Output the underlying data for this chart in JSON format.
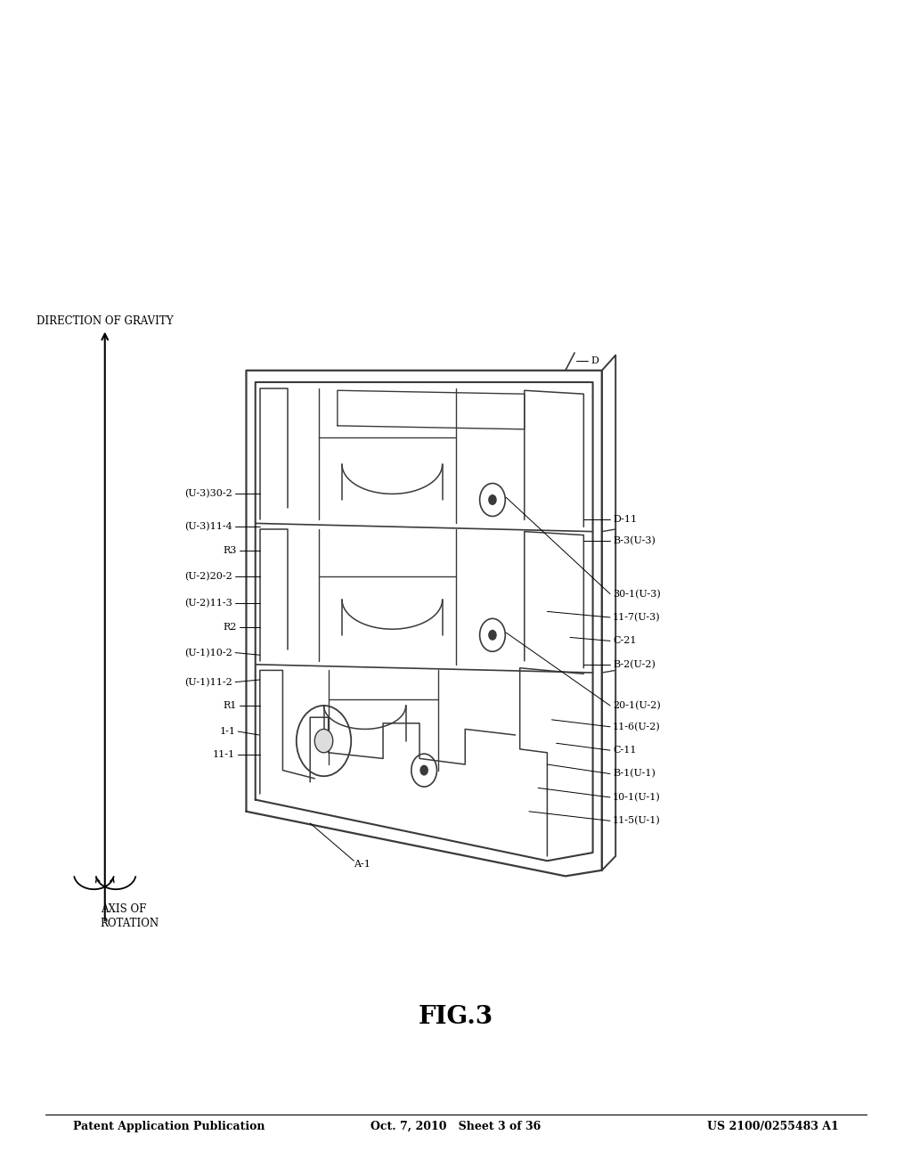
{
  "header_left": "Patent Application Publication",
  "header_center": "Oct. 7, 2010   Sheet 3 of 36",
  "header_right": "US 2100/0255483 A1",
  "figure_title": "FIG.3",
  "bg_color": "#ffffff",
  "line_color": "#3a3a3a",
  "fontsize_header": 9,
  "fontsize_title": 20,
  "fontsize_labels": 8,
  "fontsize_axis": 8.5
}
